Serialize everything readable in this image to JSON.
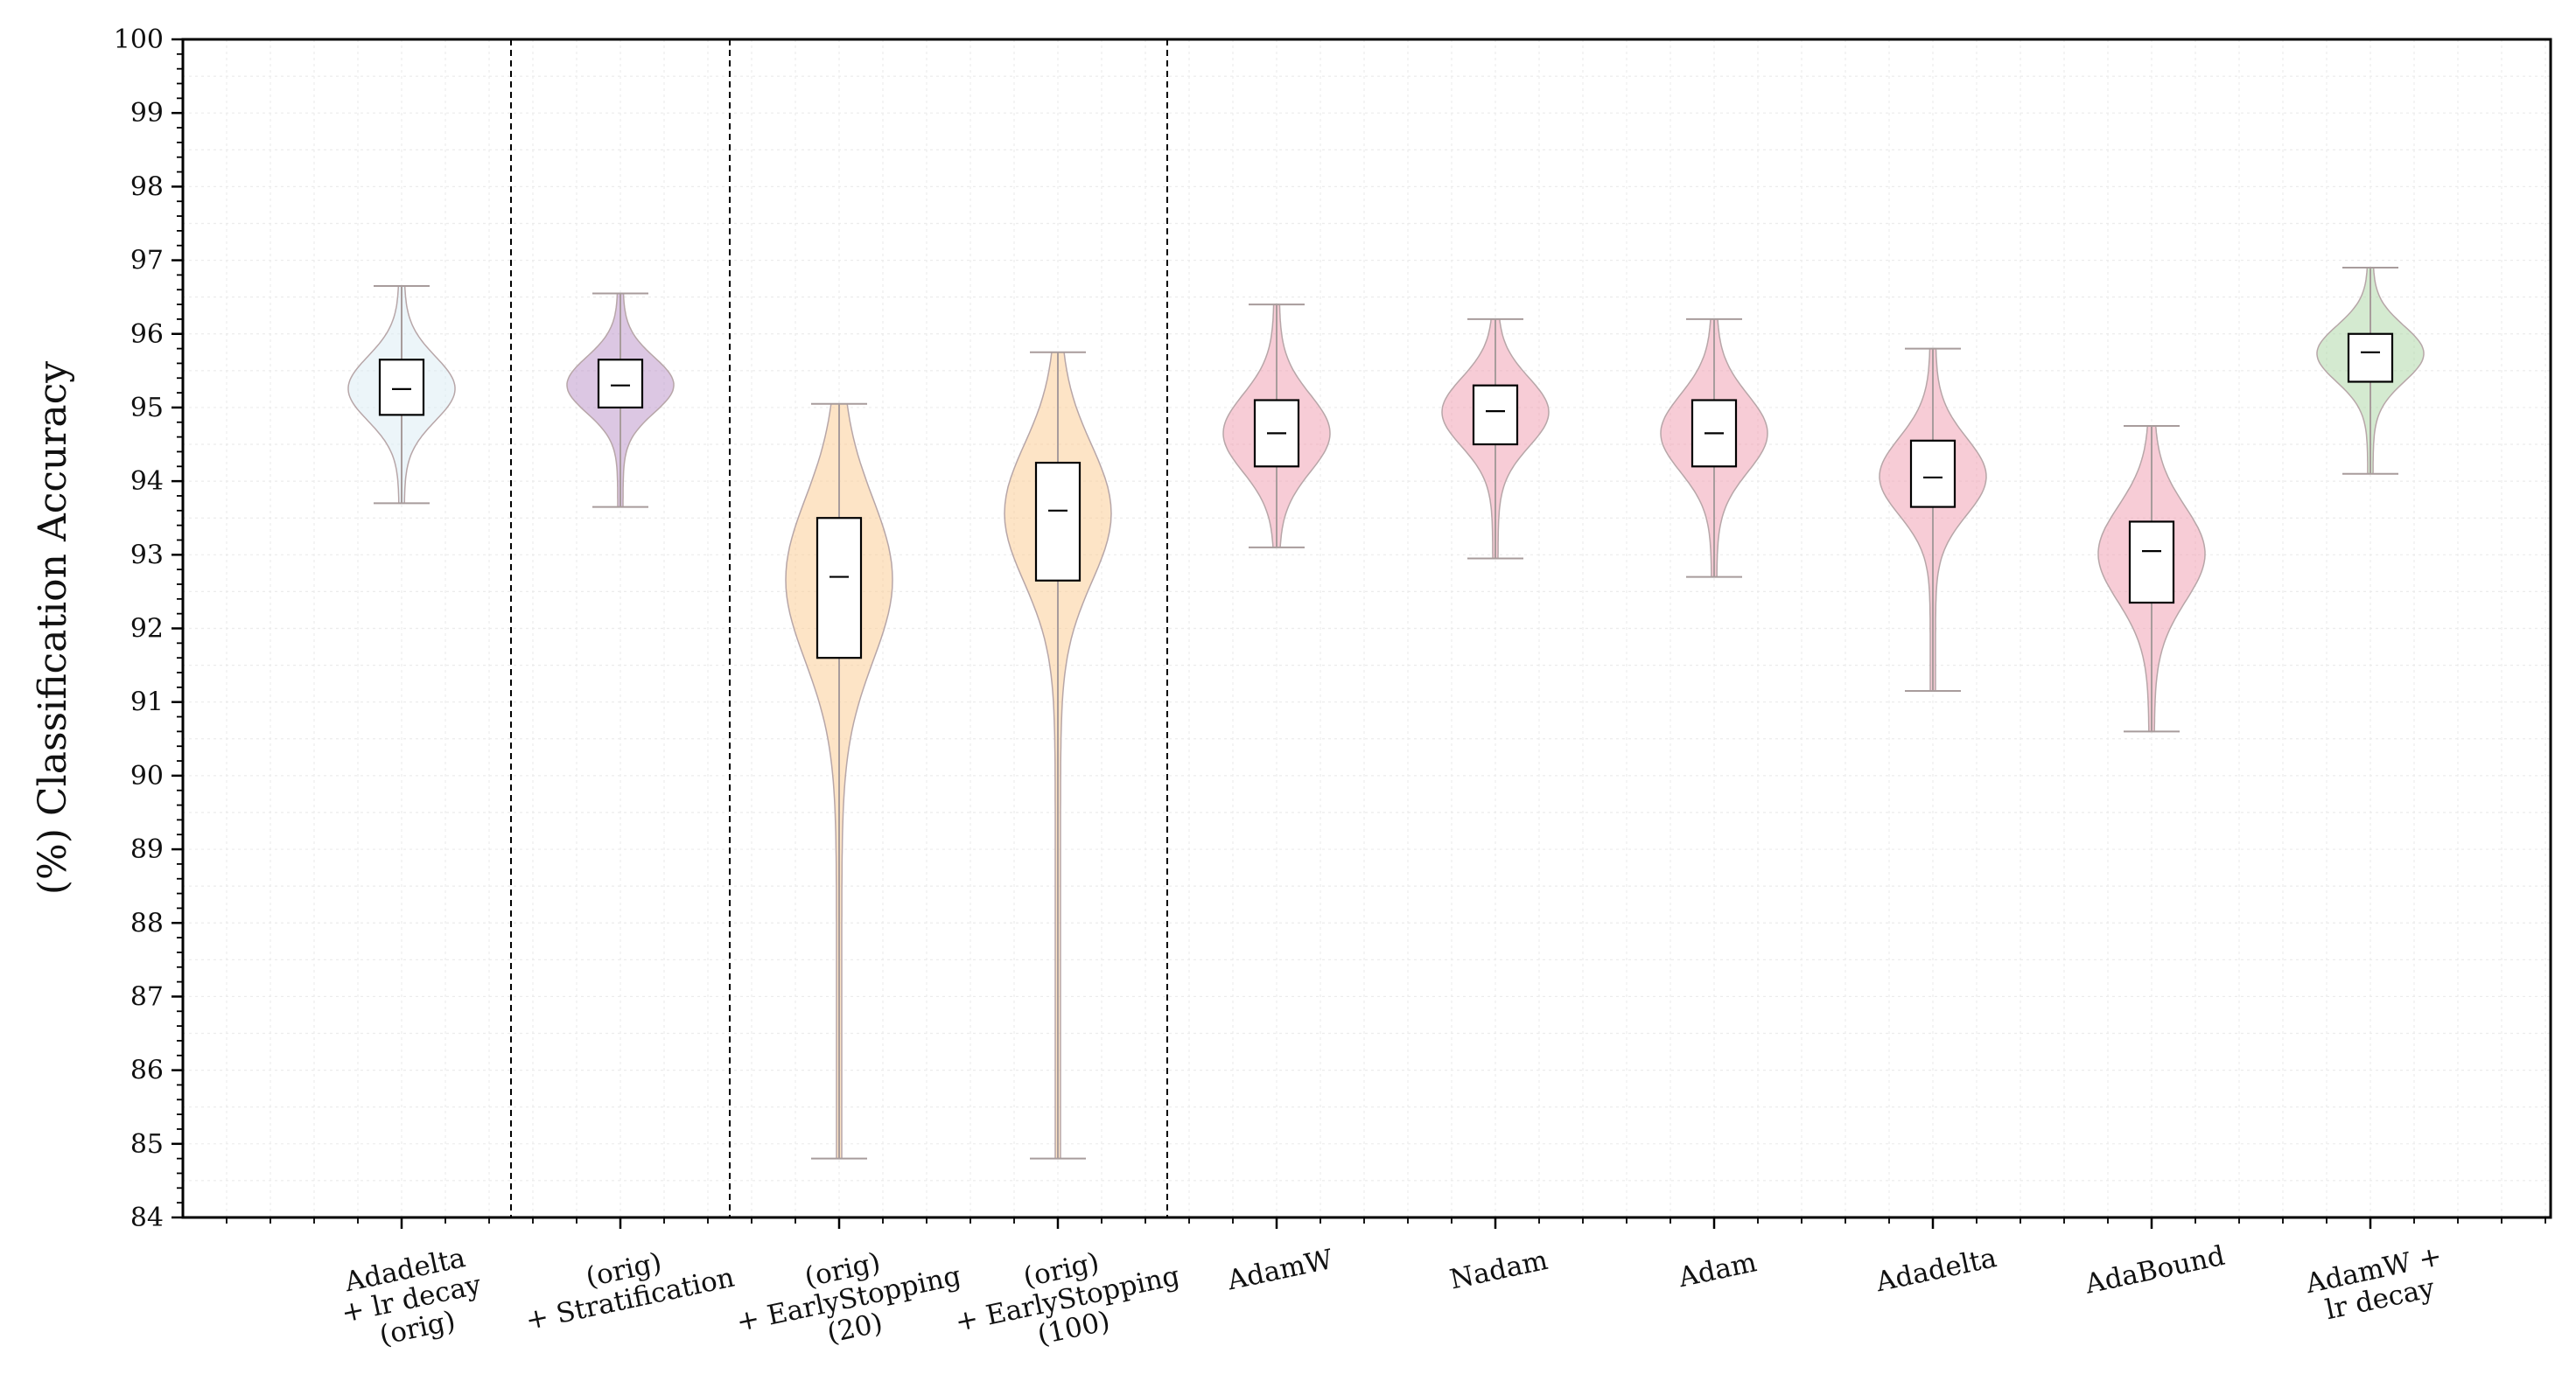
{
  "chart_data": {
    "type": "violin",
    "ylabel": "(%) Classification Accuracy",
    "xlabel": "",
    "ylim": [
      84,
      100
    ],
    "yticks": [
      84,
      85,
      86,
      87,
      88,
      89,
      90,
      91,
      92,
      93,
      94,
      95,
      96,
      97,
      98,
      99,
      100
    ],
    "grid": true,
    "group_separators_after": [
      0,
      1,
      3
    ],
    "categories": [
      {
        "lines": [
          "Adadelta",
          "+ lr decay",
          "(orig)"
        ],
        "color": "#d9ecf3",
        "min": 93.7,
        "q1": 94.9,
        "median": 95.25,
        "q3": 95.65,
        "max": 96.65
      },
      {
        "lines": [
          "(orig)",
          "+ Stratification"
        ],
        "color": "#b98fc8",
        "min": 93.65,
        "q1": 95.0,
        "median": 95.3,
        "q3": 95.65,
        "max": 96.55
      },
      {
        "lines": [
          "(orig)",
          "+ EarlyStopping",
          "(20)"
        ],
        "color": "#fbc98e",
        "min": 84.8,
        "q1": 91.6,
        "median": 92.7,
        "q3": 93.5,
        "max": 95.05
      },
      {
        "lines": [
          "(orig)",
          "+ EarlyStopping",
          "(100)"
        ],
        "color": "#fbc98e",
        "min": 84.8,
        "q1": 92.65,
        "median": 93.6,
        "q3": 94.25,
        "max": 95.75
      },
      {
        "lines": [
          "AdamW"
        ],
        "color": "#ef9aae",
        "min": 93.1,
        "q1": 94.2,
        "median": 94.65,
        "q3": 95.1,
        "max": 96.4
      },
      {
        "lines": [
          "Nadam"
        ],
        "color": "#ef9aae",
        "min": 92.95,
        "q1": 94.5,
        "median": 94.95,
        "q3": 95.3,
        "max": 96.2
      },
      {
        "lines": [
          "Adam"
        ],
        "color": "#ef9aae",
        "min": 92.7,
        "q1": 94.2,
        "median": 94.65,
        "q3": 95.1,
        "max": 96.2
      },
      {
        "lines": [
          "Adadelta"
        ],
        "color": "#ef9aae",
        "min": 91.15,
        "q1": 93.65,
        "median": 94.05,
        "q3": 94.55,
        "max": 95.8
      },
      {
        "lines": [
          "AdaBound"
        ],
        "color": "#ef9aae",
        "min": 90.6,
        "q1": 92.35,
        "median": 93.05,
        "q3": 93.45,
        "max": 94.75
      },
      {
        "lines": [
          "AdamW +",
          "lr decay"
        ],
        "color": "#a9d6a2",
        "min": 94.1,
        "q1": 95.35,
        "median": 95.75,
        "q3": 96.0,
        "max": 96.9
      }
    ]
  }
}
